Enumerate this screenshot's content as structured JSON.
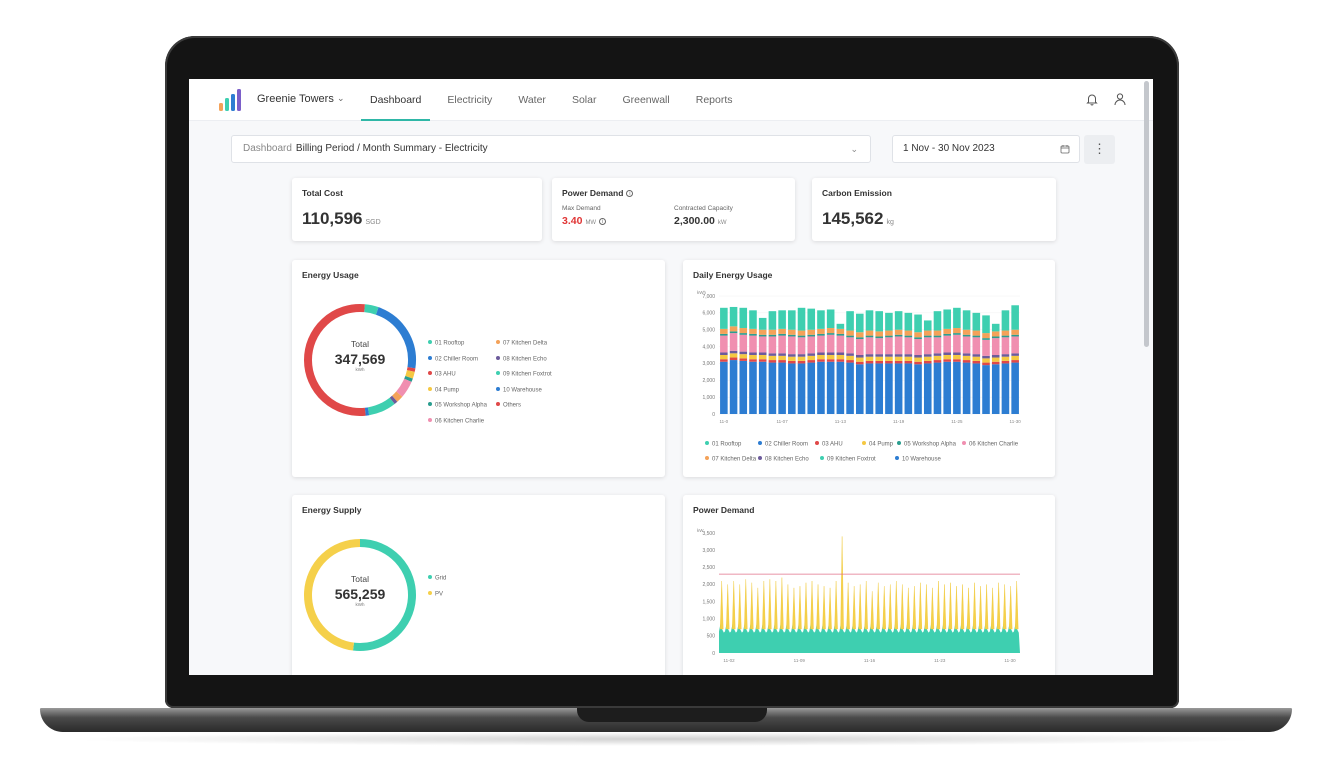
{
  "topbar": {
    "brand": "Greenie Towers",
    "tabs": [
      {
        "label": "Dashboard",
        "active": true
      },
      {
        "label": "Electricity"
      },
      {
        "label": "Water"
      },
      {
        "label": "Solar"
      },
      {
        "label": "Greenwall"
      },
      {
        "label": "Reports"
      }
    ],
    "icons": [
      "logo-bars-icon",
      "chevron-down-icon",
      "bell-icon",
      "user-icon"
    ]
  },
  "filter": {
    "label": "Dashboard",
    "value": "Billing Period / Month Summary - Electricity",
    "date_range": "1 Nov - 30 Nov 2023",
    "more_icon": "⋮"
  },
  "kpis": {
    "total_cost": {
      "title": "Total Cost",
      "value": "110,596",
      "unit": "SGD"
    },
    "power_demand": {
      "title": "Power Demand",
      "max_label": "Max Demand",
      "max_value": "3.40",
      "max_unit": "MW",
      "capacity_label": "Contracted Capacity",
      "capacity_value": "2,300.00",
      "capacity_unit": "kW"
    },
    "carbon": {
      "title": "Carbon Emission",
      "value": "145,562",
      "unit": "kg"
    }
  },
  "energy_usage": {
    "title": "Energy Usage",
    "total_label": "Total",
    "total_value": "347,569",
    "total_unit": "kWh",
    "legend": [
      {
        "label": "01 Rooftop",
        "color": "#3ecfb0"
      },
      {
        "label": "02 Chiller Room",
        "color": "#2d7dd2"
      },
      {
        "label": "03 AHU",
        "color": "#e04848"
      },
      {
        "label": "04 Pump",
        "color": "#f5c842"
      },
      {
        "label": "05 Workshop Alpha",
        "color": "#2a9d8f"
      },
      {
        "label": "06 Kitchen Charlie",
        "color": "#f08fb0"
      },
      {
        "label": "07 Kitchen Delta",
        "color": "#f4a259"
      },
      {
        "label": "08 Kitchen Echo",
        "color": "#6c5b9b"
      },
      {
        "label": "09 Kitchen Foxtrot",
        "color": "#3ecfb0"
      },
      {
        "label": "10 Warehouse",
        "color": "#2d7dd2"
      },
      {
        "label": "Others",
        "color": "#e04848"
      }
    ]
  },
  "daily_usage": {
    "title": "Daily Energy Usage",
    "legend": [
      {
        "label": "01 Rooftop",
        "color": "#3ecfb0"
      },
      {
        "label": "02 Chiller Room",
        "color": "#2d7dd2"
      },
      {
        "label": "03 AHU",
        "color": "#e04848"
      },
      {
        "label": "04 Pump",
        "color": "#f5c842"
      },
      {
        "label": "05 Workshop Alpha",
        "color": "#2a9d8f"
      },
      {
        "label": "06 Kitchen Charlie",
        "color": "#f08fb0"
      },
      {
        "label": "07 Kitchen Delta",
        "color": "#f4a259"
      },
      {
        "label": "08 Kitchen Echo",
        "color": "#6c5b9b"
      },
      {
        "label": "09 Kitchen Foxtrot",
        "color": "#3ecfb0"
      },
      {
        "label": "10 Warehouse",
        "color": "#2d7dd2"
      }
    ]
  },
  "energy_supply": {
    "title": "Energy Supply",
    "total_label": "Total",
    "total_value": "565,259",
    "total_unit": "kWh",
    "legend": [
      {
        "label": "Grid",
        "color": "#3ecfb0"
      },
      {
        "label": "PV",
        "color": "#f5d04a"
      }
    ]
  },
  "power_demand_chart": {
    "title": "Power Demand"
  },
  "chart_data": [
    {
      "type": "pie",
      "title": "Energy Usage",
      "categories": [
        "01 Rooftop",
        "02 Chiller Room",
        "03 AHU",
        "04 Pump",
        "05 Workshop Alpha",
        "06 Kitchen Charlie",
        "07 Kitchen Delta",
        "08 Kitchen Echo",
        "09 Kitchen Foxtrot",
        "10 Warehouse",
        "Others"
      ],
      "values": [
        4,
        22,
        1,
        2,
        1,
        5,
        2,
        1,
        8,
        1,
        53
      ],
      "colors": [
        "#3ecfb0",
        "#2d7dd2",
        "#e04848",
        "#f5c842",
        "#2a9d8f",
        "#f08fb0",
        "#f4a259",
        "#6c5b9b",
        "#3ecfb0",
        "#2d7dd2",
        "#e04848"
      ]
    },
    {
      "type": "bar",
      "stacked": true,
      "title": "Daily Energy Usage",
      "ylabel": "kWh",
      "ylim": [
        0,
        7000
      ],
      "yticks": [
        "0",
        "1,000",
        "2,000",
        "3,000",
        "4,000",
        "5,000",
        "6,000",
        "7,000"
      ],
      "xticks": [
        "11-0",
        "11-07",
        "11-13",
        "11-19",
        "11-25",
        "11-30"
      ],
      "series": [
        {
          "name": "10 Warehouse",
          "color": "#2d7dd2",
          "values": [
            3100,
            3200,
            3150,
            3100,
            3100,
            3050,
            3050,
            3000,
            3000,
            3050,
            3100,
            3100,
            3100,
            3050,
            2950,
            3000,
            3000,
            3000,
            3000,
            3000,
            2950,
            3000,
            3050,
            3100,
            3100,
            3050,
            3000,
            2900,
            2950,
            3000,
            3050
          ]
        },
        {
          "name": "03 AHU",
          "color": "#e04848",
          "values": [
            150,
            150,
            150,
            150,
            150,
            150,
            150,
            150,
            150,
            150,
            150,
            150,
            150,
            150,
            150,
            150,
            150,
            150,
            150,
            150,
            150,
            150,
            150,
            150,
            150,
            150,
            150,
            150,
            150,
            150,
            150
          ]
        },
        {
          "name": "04 Pump",
          "color": "#f5c842",
          "values": [
            250,
            250,
            250,
            250,
            250,
            250,
            250,
            250,
            250,
            250,
            250,
            250,
            250,
            250,
            250,
            250,
            250,
            250,
            250,
            250,
            250,
            250,
            250,
            250,
            250,
            250,
            250,
            250,
            250,
            250,
            250
          ]
        },
        {
          "name": "08 Kitchen Echo",
          "color": "#6c5b9b",
          "values": [
            150,
            150,
            150,
            150,
            150,
            150,
            150,
            150,
            150,
            150,
            150,
            150,
            150,
            150,
            150,
            150,
            150,
            150,
            150,
            150,
            150,
            150,
            150,
            150,
            150,
            150,
            150,
            150,
            150,
            150,
            150
          ]
        },
        {
          "name": "06 Kitchen Charlie",
          "color": "#f08fb0",
          "values": [
            1000,
            1050,
            1000,
            1000,
            950,
            1000,
            1050,
            1050,
            1000,
            1000,
            1000,
            1050,
            1000,
            950,
            950,
            1000,
            950,
            1000,
            1050,
            1000,
            950,
            1000,
            950,
            1000,
            1050,
            1000,
            1000,
            950,
            1000,
            1000,
            1000
          ]
        },
        {
          "name": "05 Workshop Alpha",
          "color": "#2a9d8f",
          "values": [
            100,
            100,
            100,
            100,
            100,
            100,
            100,
            100,
            100,
            100,
            100,
            100,
            100,
            100,
            100,
            100,
            100,
            100,
            100,
            100,
            100,
            100,
            100,
            100,
            100,
            100,
            100,
            100,
            100,
            100,
            100
          ]
        },
        {
          "name": "07 Kitchen Delta",
          "color": "#f4a259",
          "values": [
            300,
            300,
            300,
            300,
            300,
            300,
            300,
            300,
            300,
            300,
            300,
            300,
            300,
            300,
            300,
            300,
            300,
            300,
            300,
            300,
            300,
            300,
            300,
            300,
            300,
            300,
            300,
            300,
            300,
            300,
            300
          ]
        },
        {
          "name": "01 Rooftop",
          "color": "#3ecfb0",
          "values": [
            1250,
            1150,
            1200,
            1100,
            700,
            1100,
            1100,
            1150,
            1350,
            1250,
            1100,
            1100,
            300,
            1150,
            1100,
            1200,
            1200,
            1050,
            1100,
            1050,
            1050,
            600,
            1150,
            1150,
            1200,
            1150,
            1050,
            1050,
            450,
            1200,
            1450
          ]
        }
      ]
    },
    {
      "type": "pie",
      "title": "Energy Supply",
      "categories": [
        "Grid",
        "PV"
      ],
      "values": [
        52,
        48
      ],
      "colors": [
        "#3ecfb0",
        "#f5d04a"
      ]
    },
    {
      "type": "line",
      "title": "Power Demand",
      "ylabel": "kW",
      "ylim": [
        0,
        3500
      ],
      "yticks": [
        "0",
        "500",
        "1,000",
        "1,500",
        "2,000",
        "2,500",
        "3,000",
        "3,500"
      ],
      "xticks": [
        "11-02",
        "11-09",
        "11-16",
        "11-23",
        "11-30"
      ],
      "contracted_capacity": 2300,
      "peaks_pv": [
        2100,
        2000,
        2100,
        2000,
        2150,
        2050,
        1900,
        2100,
        2150,
        2100,
        2200,
        2000,
        1900,
        1950,
        2050,
        2100,
        2000,
        1950,
        1900,
        2100,
        3400,
        2050,
        1950,
        2000,
        2100,
        1800,
        2050,
        1950,
        2000,
        2100,
        2000,
        1900,
        1950,
        2050,
        2000,
        1900,
        2100,
        2000,
        2050,
        1950,
        2000,
        1900,
        2050,
        1950,
        2000,
        1900,
        2050,
        2000,
        1950,
        2100
      ],
      "grid_level": 700,
      "grid_peaks": 900
    }
  ]
}
